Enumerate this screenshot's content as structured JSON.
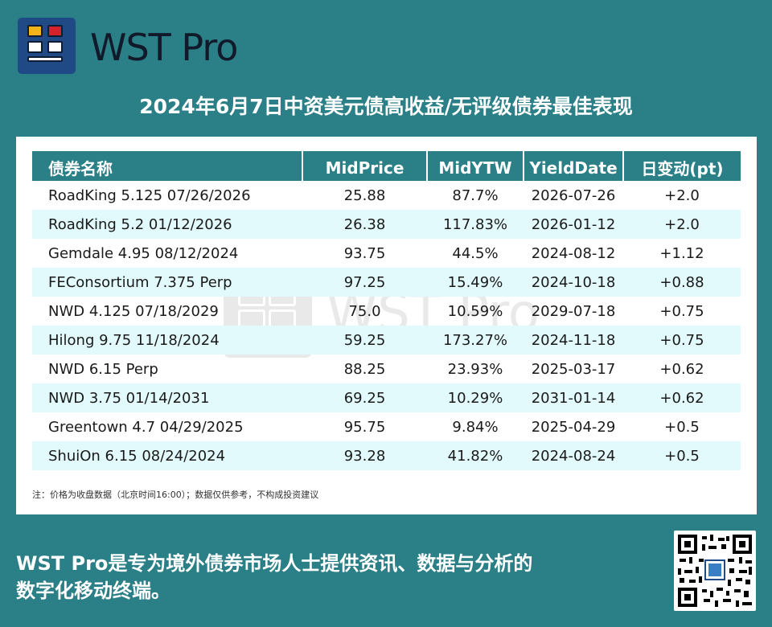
{
  "brand": {
    "name": "WST Pro"
  },
  "headline": "2024年6月7日中资美元债高收益/无评级债券最佳表现",
  "table": {
    "columns": [
      "债券名称",
      "MidPrice",
      "MidYTW",
      "YieldDate",
      "日变动(pt)"
    ],
    "rows": [
      [
        "RoadKing 5.125 07/26/2026",
        "25.88",
        "87.7%",
        "2026-07-26",
        "+2.0"
      ],
      [
        "RoadKing 5.2 01/12/2026",
        "26.38",
        "117.83%",
        "2026-01-12",
        "+2.0"
      ],
      [
        "Gemdale 4.95 08/12/2024",
        "93.75",
        "44.5%",
        "2024-08-12",
        "+1.12"
      ],
      [
        "FEConsortium 7.375 Perp",
        "97.25",
        "15.49%",
        "2024-10-18",
        "+0.88"
      ],
      [
        "NWD 4.125 07/18/2029",
        "75.0",
        "10.59%",
        "2029-07-18",
        "+0.75"
      ],
      [
        "Hilong 9.75 11/18/2024",
        "59.25",
        "173.27%",
        "2024-11-18",
        "+0.75"
      ],
      [
        "NWD 6.15 Perp",
        "88.25",
        "23.93%",
        "2025-03-17",
        "+0.62"
      ],
      [
        "NWD 3.75 01/14/2031",
        "69.25",
        "10.29%",
        "2031-01-14",
        "+0.62"
      ],
      [
        "Greentown 4.7 04/29/2025",
        "95.75",
        "9.84%",
        "2025-04-29",
        "+0.5"
      ],
      [
        "ShuiOn 6.15 08/24/2024",
        "93.28",
        "41.82%",
        "2024-08-24",
        "+0.5"
      ]
    ]
  },
  "note": "注：价格为收盘数据（北京时间16:00）；数据仅供参考，不构成投资建议",
  "watermark": "WST Pro",
  "footer": {
    "line1": "WST Pro是专为境外债券市场人士提供资讯、数据与分析的",
    "line2": "数字化移动终端。"
  },
  "icons": [
    "wst-pro-logo-icon",
    "qr-code-icon"
  ],
  "colors": {
    "background": "#2b7f86",
    "header_row": "#2b7f86",
    "alt_row": "#e2fafc",
    "logo": "#1f4a86"
  }
}
